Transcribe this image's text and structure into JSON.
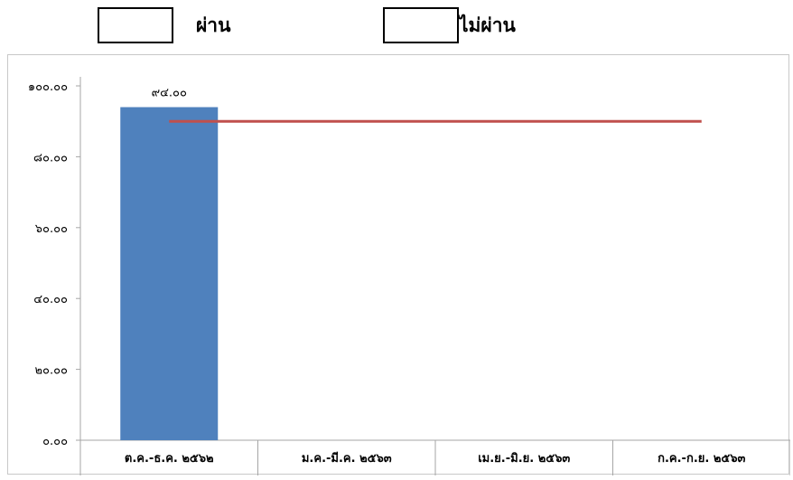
{
  "legend": {
    "pass_label": "ผ่าน",
    "fail_label": "ไม่ผ่าน"
  },
  "chart_data": {
    "type": "bar",
    "categories": [
      "ต.ค.-ธ.ค. ๒๕๖๒",
      "ม.ค.-มี.ค. ๒๕๖๓",
      "เม.ย.-มิ.ย. ๒๕๖๓",
      "ก.ค.-ก.ย. ๒๕๖๓"
    ],
    "series": [
      {
        "type": "bar",
        "values": [
          94.0,
          null,
          null,
          null
        ],
        "data_labels": [
          "๙๔.๐๐",
          "",
          "",
          ""
        ],
        "color": "#4f81bd"
      },
      {
        "type": "line",
        "values": [
          90.0,
          90.0,
          90.0,
          90.0
        ],
        "color": "#c0504d"
      }
    ],
    "ylim": [
      0,
      100
    ],
    "y_ticks": [
      0,
      20,
      40,
      60,
      80,
      100
    ],
    "y_tick_labels": [
      "๐.๐๐",
      "๒๐.๐๐",
      "๔๐.๐๐",
      "๖๐.๐๐",
      "๘๐.๐๐",
      "๑๐๐.๐๐"
    ],
    "title": "",
    "xlabel": "",
    "ylabel": "",
    "grid": false
  }
}
